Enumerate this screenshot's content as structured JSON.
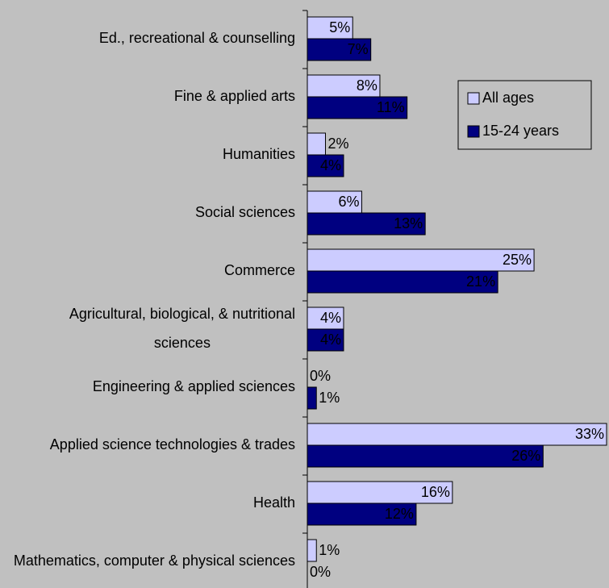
{
  "chart_data": {
    "type": "hbar",
    "categories": [
      "Ed., recreational & counselling",
      "Fine & applied arts",
      "Humanities",
      "Social sciences",
      "Commerce",
      "Agricultural, biological, & nutritional sciences",
      "Engineering & applied sciences",
      "Applied science technologies & trades",
      "Health",
      "Mathematics, computer & physical sciences"
    ],
    "series": [
      {
        "name": "All ages",
        "color": "#ccccff",
        "values": [
          5,
          8,
          2,
          6,
          25,
          4,
          0,
          33,
          16,
          1
        ],
        "value_labels": [
          "5%",
          "8%",
          "2%",
          "6%",
          "25%",
          "4%",
          "0%",
          "33%",
          "16%",
          "1%"
        ]
      },
      {
        "name": "15-24 years",
        "color": "#000080",
        "values": [
          7,
          11,
          4,
          13,
          21,
          4,
          1,
          26,
          12,
          0
        ],
        "value_labels": [
          "7%",
          "11%",
          "4%",
          "13%",
          "21%",
          "4%",
          "1%",
          "26%",
          "12%",
          "0%"
        ]
      }
    ],
    "xlim": [
      0,
      33
    ],
    "legend": "right"
  }
}
